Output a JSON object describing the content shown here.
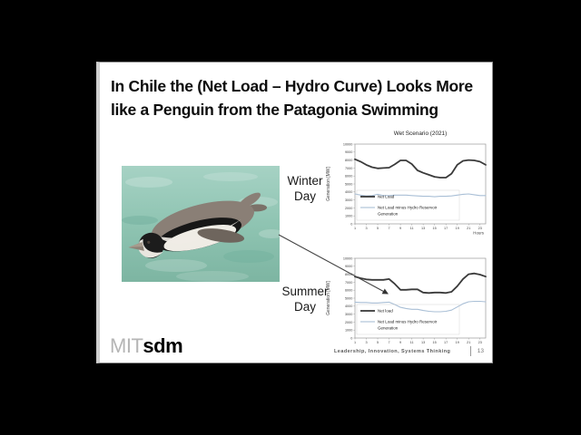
{
  "slide": {
    "title_line1": "In Chile the (Net Load – Hydro Curve) Looks More",
    "title_line2": "like a Penguin from the Patagonia Swimming",
    "winter_label": "Winter Day",
    "summer_label": "Summer Day",
    "logo_mit": "MIT",
    "logo_sdm": "sdm",
    "footer": "Leadership, Innovation, Systems Thinking",
    "page_number": "13"
  },
  "colors": {
    "net_load_line": "#3a3a3a",
    "net_load_minus_hydro_line": "#a9bfd6",
    "axis": "#999999",
    "tick_text": "#3c3c3c",
    "water": "#8fc4b2"
  },
  "chart_data": [
    {
      "type": "line",
      "title": "Wet Scenario (2021)",
      "ylabel": "Generation [MW]",
      "xlabel": "Hours",
      "ylim": [
        0,
        10000
      ],
      "ytick_step": 1000,
      "xticks": [
        1,
        3,
        5,
        7,
        9,
        11,
        13,
        15,
        17,
        19,
        21,
        23
      ],
      "x": [
        1,
        2,
        3,
        4,
        5,
        6,
        7,
        8,
        9,
        10,
        11,
        12,
        13,
        14,
        15,
        16,
        17,
        18,
        19,
        20,
        21,
        22,
        23,
        24
      ],
      "series": [
        {
          "name": "Net Load",
          "legend_lines": [
            "Net Load"
          ],
          "color": "#3a3a3a",
          "width": 1.8,
          "values": [
            8100,
            7800,
            7400,
            7100,
            6950,
            7000,
            7050,
            7450,
            7950,
            7950,
            7500,
            6700,
            6400,
            6150,
            5900,
            5800,
            5800,
            6300,
            7400,
            7900,
            8000,
            7950,
            7800,
            7400
          ]
        },
        {
          "name": "Net Load minus Hydro Reservoir Generation",
          "legend_lines": [
            "Net Load minus Hydro Reservoir",
            "Generation"
          ],
          "color": "#a9bfd6",
          "width": 1.1,
          "values": [
            3750,
            3600,
            3500,
            3550,
            3700,
            3550,
            3550,
            3600,
            3600,
            3600,
            3550,
            3500,
            3450,
            3450,
            3400,
            3450,
            3450,
            3500,
            3600,
            3700,
            3750,
            3650,
            3550,
            3550
          ]
        }
      ]
    },
    {
      "type": "line",
      "title": "",
      "ylabel": "Generation [MW]",
      "xlabel": "",
      "ylim": [
        0,
        10000
      ],
      "ytick_step": 1000,
      "xticks": [
        1,
        3,
        5,
        7,
        9,
        11,
        13,
        15,
        17,
        19,
        21,
        23
      ],
      "x": [
        1,
        2,
        3,
        4,
        5,
        6,
        7,
        8,
        9,
        10,
        11,
        12,
        13,
        14,
        15,
        16,
        17,
        18,
        19,
        20,
        21,
        22,
        23,
        24
      ],
      "series": [
        {
          "name": "Net load",
          "legend_lines": [
            "Net load"
          ],
          "color": "#3a3a3a",
          "width": 1.8,
          "values": [
            7700,
            7500,
            7350,
            7300,
            7300,
            7300,
            7400,
            6800,
            6050,
            6050,
            6100,
            6100,
            5700,
            5650,
            5700,
            5700,
            5650,
            5800,
            6500,
            7400,
            8000,
            8100,
            7950,
            7700
          ]
        },
        {
          "name": "Net Load minus Hydro Reservoir Generation",
          "legend_lines": [
            "Net Load minus Hydro Reservoir",
            "Generation"
          ],
          "color": "#a9bfd6",
          "width": 1.1,
          "values": [
            4500,
            4450,
            4450,
            4400,
            4400,
            4450,
            4500,
            4200,
            3850,
            3700,
            3600,
            3600,
            3450,
            3350,
            3300,
            3300,
            3350,
            3500,
            3900,
            4300,
            4550,
            4600,
            4600,
            4550
          ]
        }
      ]
    }
  ]
}
